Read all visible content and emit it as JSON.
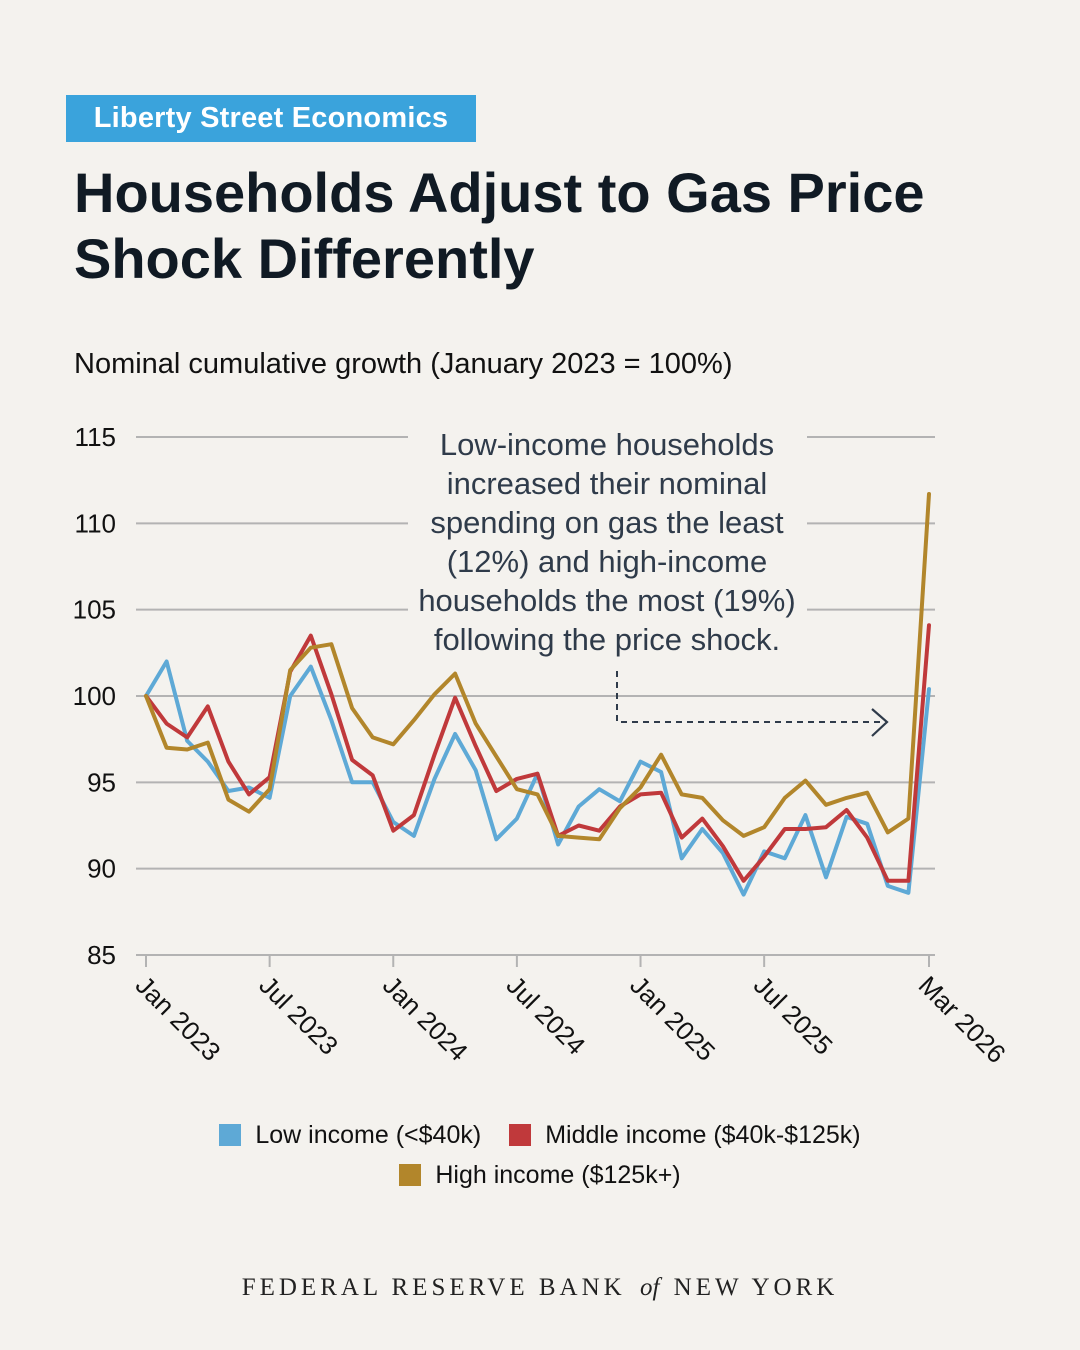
{
  "brand": "Liberty Street Economics",
  "title_line1": "Households Adjust to Gas Price",
  "title_line2": "Shock Differently",
  "footer": {
    "main1": "FEDERAL RESERVE BANK",
    "of": "of",
    "main2": "NEW YORK"
  },
  "colors": {
    "low": "#5ea9d6",
    "middle": "#c0393b",
    "high": "#b2862b",
    "brand": "#3aa3dc",
    "grid": "#aaaaaa",
    "background": "#f4f2ee"
  },
  "chart_data": {
    "type": "line",
    "title": "Nominal cumulative growth (January 2023 = 100%)",
    "xlabel": "",
    "ylabel": "",
    "ylim": [
      85,
      115
    ],
    "yticks": [
      85,
      90,
      95,
      100,
      105,
      110,
      115
    ],
    "xticks": [
      {
        "label": "Jan 2023",
        "index": 0
      },
      {
        "label": "Jul 2023",
        "index": 6
      },
      {
        "label": "Jan 2024",
        "index": 12
      },
      {
        "label": "Jul 2024",
        "index": 18
      },
      {
        "label": "Jan 2025",
        "index": 24
      },
      {
        "label": "Jul 2025",
        "index": 30
      },
      {
        "label": "Mar 2026",
        "index": 38
      }
    ],
    "grid": true,
    "legend_position": "bottom",
    "annotation": {
      "lines": [
        "Low-income households",
        "increased their nominal",
        "spending on gas the least",
        "(12%) and high-income",
        "households the most (19%)",
        "following the price shock."
      ]
    },
    "series": [
      {
        "name": "Low income (<$40k)",
        "color": "#5ea9d6",
        "values": [
          100.0,
          102.0,
          97.4,
          96.2,
          94.5,
          94.7,
          94.1,
          100.0,
          101.7,
          98.6,
          95.0,
          95.0,
          92.7,
          91.9,
          95.2,
          97.8,
          95.7,
          91.7,
          92.9,
          95.5,
          91.4,
          93.6,
          94.6,
          93.9,
          96.2,
          95.6,
          90.6,
          92.3,
          90.9,
          88.5,
          91.0,
          90.6,
          93.1,
          89.5,
          93.0,
          92.6,
          89.0,
          88.6,
          100.4
        ]
      },
      {
        "name": "Middle income ($40k-$125k)",
        "color": "#c0393b",
        "values": [
          100.0,
          98.4,
          97.6,
          99.4,
          96.2,
          94.3,
          95.3,
          101.4,
          103.5,
          100.1,
          96.3,
          95.4,
          92.2,
          93.1,
          96.6,
          99.9,
          97.1,
          94.5,
          95.2,
          95.5,
          91.9,
          92.5,
          92.2,
          93.6,
          94.3,
          94.4,
          91.8,
          92.9,
          91.3,
          89.3,
          90.7,
          92.3,
          92.3,
          92.4,
          93.4,
          91.8,
          89.3,
          89.3,
          104.1
        ]
      },
      {
        "name": "High income ($125k+)",
        "color": "#b2862b",
        "values": [
          100.0,
          97.0,
          96.9,
          97.3,
          94.0,
          93.3,
          94.6,
          101.5,
          102.8,
          103.0,
          99.3,
          97.6,
          97.2,
          98.6,
          100.1,
          101.3,
          98.4,
          96.5,
          94.6,
          94.3,
          91.9,
          91.8,
          91.7,
          93.5,
          94.7,
          96.6,
          94.3,
          94.1,
          92.8,
          91.9,
          92.4,
          94.1,
          95.1,
          93.7,
          94.1,
          94.4,
          92.1,
          92.9,
          111.7
        ]
      }
    ]
  }
}
